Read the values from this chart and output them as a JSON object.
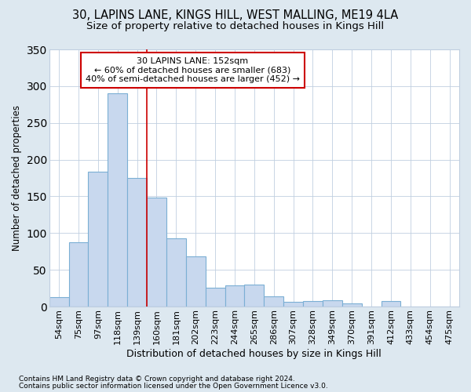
{
  "title": "30, LAPINS LANE, KINGS HILL, WEST MALLING, ME19 4LA",
  "subtitle": "Size of property relative to detached houses in Kings Hill",
  "xlabel": "Distribution of detached houses by size in Kings Hill",
  "ylabel": "Number of detached properties",
  "categories": [
    "54sqm",
    "75sqm",
    "97sqm",
    "118sqm",
    "139sqm",
    "160sqm",
    "181sqm",
    "202sqm",
    "223sqm",
    "244sqm",
    "265sqm",
    "286sqm",
    "307sqm",
    "328sqm",
    "349sqm",
    "370sqm",
    "391sqm",
    "412sqm",
    "433sqm",
    "454sqm",
    "475sqm"
  ],
  "values": [
    13,
    88,
    184,
    290,
    175,
    148,
    93,
    68,
    26,
    29,
    30,
    14,
    6,
    7,
    9,
    4,
    0,
    7,
    0,
    0,
    0
  ],
  "bar_color": "#c8d8ee",
  "bar_edge_color": "#7bafd4",
  "vline_pos": 4.5,
  "vline_color": "#cc0000",
  "annotation_line1": "30 LAPINS LANE: 152sqm",
  "annotation_line2": "← 60% of detached houses are smaller (683)",
  "annotation_line3": "40% of semi-detached houses are larger (452) →",
  "annotation_box_facecolor": "#ffffff",
  "annotation_box_edgecolor": "#cc0000",
  "footnote1": "Contains HM Land Registry data © Crown copyright and database right 2024.",
  "footnote2": "Contains public sector information licensed under the Open Government Licence v3.0.",
  "bg_color": "#dde8f0",
  "plot_bg_color": "#ffffff",
  "ylim": [
    0,
    350
  ],
  "yticks": [
    0,
    50,
    100,
    150,
    200,
    250,
    300,
    350
  ],
  "grid_color": "#c0cfe0",
  "title_fontsize": 10.5,
  "subtitle_fontsize": 9.5,
  "xlabel_fontsize": 9,
  "ylabel_fontsize": 8.5,
  "tick_fontsize": 8,
  "annotation_fontsize": 8,
  "footnote_fontsize": 6.5
}
